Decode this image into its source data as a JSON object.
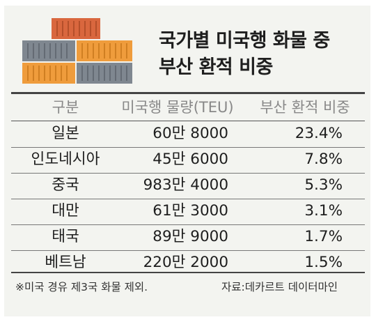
{
  "title": {
    "line1": "국가별 미국행 화물 중",
    "line2": "부산 환적 비중"
  },
  "chart_data": {
    "type": "table",
    "columns": [
      "구분",
      "미국행 물량(TEU)",
      "부산 환적 비중"
    ],
    "rows": [
      {
        "country": "일본",
        "volume": "60만 8000",
        "share": "23.4%"
      },
      {
        "country": "인도네시아",
        "volume": "45만 6000",
        "share": "7.8%"
      },
      {
        "country": "중국",
        "volume": "983만 4000",
        "share": "5.3%"
      },
      {
        "country": "대만",
        "volume": "61만 3000",
        "share": "3.1%"
      },
      {
        "country": "태국",
        "volume": "89만 9000",
        "share": "1.7%"
      },
      {
        "country": "베트남",
        "volume": "220만 2000",
        "share": "1.5%"
      }
    ]
  },
  "footnote": "※미국 경유 제3국 화물 제외.",
  "source": "자료:데카르트 데이터마인",
  "colors": {
    "container_red": "#d9673e",
    "container_orange": "#ef9c3c",
    "container_gray": "#7f8790",
    "panel_bg": "#f3f4f0"
  },
  "illustration": "shipping-containers-icon"
}
